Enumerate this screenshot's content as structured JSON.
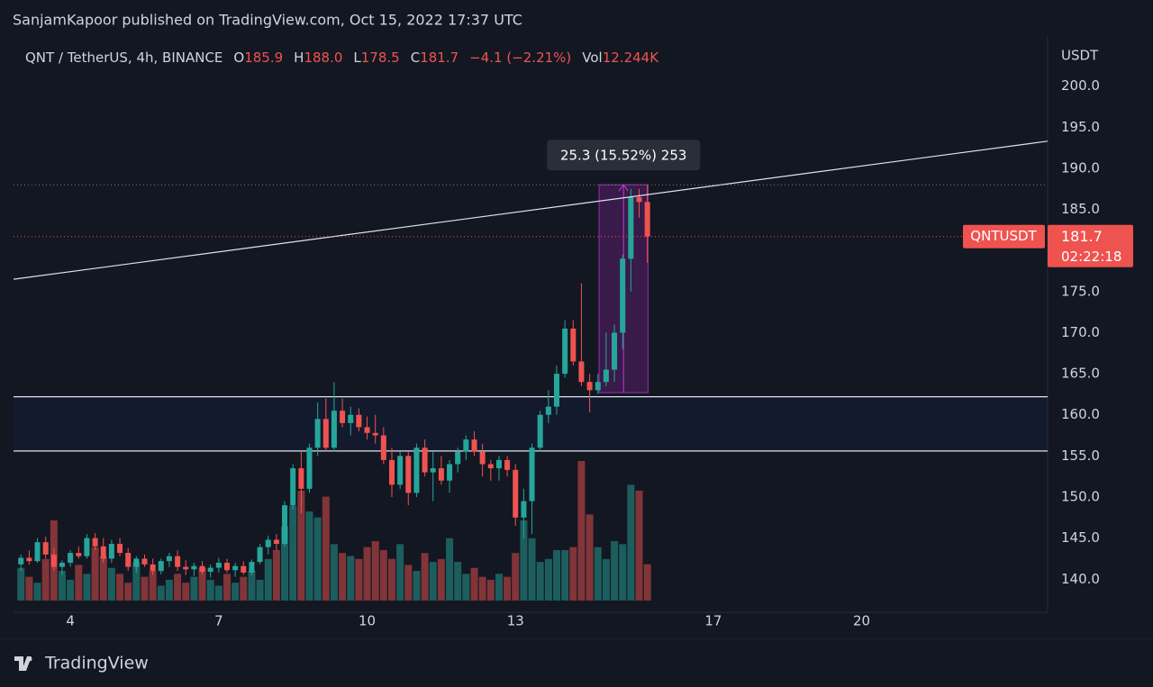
{
  "header": {
    "publisher": "SanjamKapoor published on TradingView.com, Oct 15, 2022 17:37 UTC"
  },
  "chart_data": {
    "type": "candlestick",
    "symbol": "QNT / TetherUS, 4h, BINANCE",
    "legend_values": [
      {
        "name": "O",
        "text": "185.9"
      },
      {
        "name": "H",
        "text": "188.0"
      },
      {
        "name": "L",
        "text": "178.5"
      },
      {
        "name": "C",
        "text": "181.7"
      },
      {
        "text": "−4.1 (−2.21%)"
      },
      {
        "name": "Vol",
        "text": "12.244K"
      }
    ],
    "axis_unit": "USDT",
    "up_color": "#26a69a",
    "down_color": "#ef5350",
    "x": [
      3,
      3.167,
      3.333,
      3.5,
      3.667,
      3.833,
      4,
      4.167,
      4.333,
      4.5,
      4.667,
      4.833,
      5,
      5.167,
      5.333,
      5.5,
      5.667,
      5.833,
      6,
      6.167,
      6.333,
      6.5,
      6.667,
      6.833,
      7,
      7.167,
      7.333,
      7.5,
      7.667,
      7.833,
      8,
      8.167,
      8.333,
      8.5,
      8.667,
      8.833,
      9,
      9.167,
      9.333,
      9.5,
      9.667,
      9.833,
      10,
      10.167,
      10.333,
      10.5,
      10.667,
      10.833,
      11,
      11.167,
      11.333,
      11.5,
      11.667,
      11.833,
      12,
      12.167,
      12.333,
      12.5,
      12.667,
      12.833,
      13,
      13.167,
      13.333,
      13.5,
      13.667,
      13.833,
      14,
      14.167,
      14.333,
      14.5,
      14.667,
      14.833,
      15,
      15.167,
      15.333,
      15.5,
      15.667
    ],
    "open": [
      141.8,
      142.6,
      142.2,
      144.5,
      143,
      141.5,
      142,
      143.2,
      142.8,
      145,
      144,
      142.5,
      144.3,
      143.2,
      141.5,
      142.5,
      141.8,
      141,
      142.2,
      142.8,
      141.5,
      141.2,
      141.6,
      140.9,
      141.4,
      142,
      141.1,
      141.6,
      140.8,
      142.1,
      143.9,
      144.8,
      144.3,
      149,
      153.5,
      151,
      156,
      159.5,
      156,
      160.5,
      159,
      160,
      158.5,
      157.8,
      157.5,
      154.5,
      151.5,
      155,
      150.5,
      156,
      153,
      153.5,
      152,
      154,
      155.5,
      157,
      155.5,
      154,
      153.5,
      154.5,
      153.3,
      147.5,
      149.5,
      156,
      160,
      161,
      165,
      170.5,
      166.5,
      164,
      163,
      164,
      165.5,
      170,
      179,
      186.5,
      185.9
    ],
    "high": [
      143,
      143.5,
      145,
      145.2,
      143.8,
      142.3,
      143.5,
      144,
      145.5,
      145.6,
      145,
      144.8,
      145,
      143.8,
      142.8,
      143,
      142.5,
      142.5,
      143.2,
      143.5,
      142.3,
      142,
      142.2,
      141.8,
      142.6,
      142.5,
      142,
      142.2,
      142.4,
      144.3,
      145.3,
      145.5,
      149.5,
      154,
      155.5,
      156.5,
      161.5,
      162,
      164,
      162,
      161,
      160.8,
      159.8,
      160,
      158.5,
      156,
      155.5,
      155.5,
      156.5,
      157,
      155.5,
      155,
      154.5,
      156,
      157.5,
      158,
      156.5,
      154.5,
      155,
      155,
      154,
      151,
      156.5,
      160.5,
      163,
      166,
      171.5,
      171.5,
      176,
      165,
      165,
      170,
      171,
      179.5,
      187.5,
      187.5,
      188
    ],
    "low": [
      141,
      141.8,
      142,
      142.5,
      141,
      140.5,
      141.5,
      142.5,
      142.5,
      143.5,
      142,
      142,
      142.8,
      141,
      140.8,
      141.5,
      140.5,
      140.6,
      141.5,
      141,
      140.5,
      140.4,
      140.6,
      140.2,
      140.8,
      140.8,
      140.3,
      140.5,
      140.5,
      141.8,
      143,
      143.5,
      144,
      148.5,
      148,
      150.5,
      155,
      155.5,
      155.5,
      158.5,
      157.5,
      158,
      157,
      156.5,
      154,
      150,
      151,
      149,
      150,
      152.5,
      149.5,
      151.5,
      150.5,
      153,
      154.5,
      155,
      152.5,
      152,
      152,
      152.5,
      146.5,
      145,
      145.5,
      155.5,
      159,
      160,
      164.5,
      166,
      163.5,
      160.3,
      162.5,
      163.5,
      164,
      168,
      175,
      184,
      178.5
    ],
    "close": [
      142.6,
      142.2,
      144.5,
      143,
      141.5,
      142,
      143.2,
      142.8,
      145,
      144,
      142.5,
      144.3,
      143.2,
      141.5,
      142.5,
      141.8,
      141,
      142.2,
      142.8,
      141.5,
      141.2,
      141.6,
      140.9,
      141.4,
      142,
      141.1,
      141.6,
      140.8,
      142.1,
      143.9,
      144.8,
      144.3,
      149,
      153.5,
      151,
      156,
      159.5,
      156,
      160.5,
      159,
      160,
      158.5,
      157.8,
      157.5,
      154.5,
      151.5,
      155,
      150.5,
      156,
      153,
      153.5,
      152,
      154,
      155.5,
      157,
      155.5,
      154,
      153.5,
      154.5,
      153.3,
      147.5,
      149.5,
      156,
      160,
      161,
      165,
      170.5,
      166.5,
      164,
      163,
      164,
      165.5,
      170,
      179,
      186.5,
      185.9,
      181.7
    ],
    "volume": [
      11,
      8,
      6,
      14,
      27,
      10,
      7,
      12,
      9,
      18,
      15,
      11,
      9,
      6,
      13,
      8,
      10,
      5,
      7,
      9,
      6,
      8,
      11,
      7,
      5,
      9,
      6,
      8,
      10,
      7,
      14,
      17,
      25,
      32,
      37,
      30,
      28,
      35,
      19,
      16,
      15,
      14,
      18,
      20,
      17,
      14,
      19,
      12,
      10,
      16,
      13,
      14,
      21,
      13,
      9,
      11,
      8,
      7,
      9,
      8,
      16,
      27,
      21,
      13,
      14,
      17,
      17,
      18,
      47,
      29,
      18,
      14,
      20,
      19,
      39,
      37,
      12.244
    ],
    "xlim": [
      2.85,
      23.76
    ],
    "xticks": [
      4,
      7,
      10,
      13,
      17,
      20
    ],
    "ylim": [
      137.4,
      206.1
    ],
    "yticks": [
      {
        "value": 140,
        "label": "140.0"
      },
      {
        "value": 145,
        "label": "145.0"
      },
      {
        "value": 150,
        "label": "150.0"
      },
      {
        "value": 155,
        "label": "155.0"
      },
      {
        "value": 160,
        "label": "160.0"
      },
      {
        "value": 165,
        "label": "165.0"
      },
      {
        "value": 170,
        "label": "170.0"
      },
      {
        "value": 175,
        "label": "175.0"
      },
      {
        "value": 180,
        "label": "180.0"
      },
      {
        "value": 185,
        "label": "185.0"
      },
      {
        "value": 190,
        "label": "190.0"
      },
      {
        "value": 195,
        "label": "195.0"
      },
      {
        "value": 200,
        "label": "200.0"
      }
    ],
    "hlines": [
      162.2,
      155.6
    ],
    "trendline": {
      "x": [
        2.85,
        23.76
      ],
      "y": [
        176.5,
        193.3
      ]
    },
    "measure": {
      "x": [
        14.69,
        15.68
      ],
      "y": [
        162.7,
        188.0
      ],
      "label": "25.3 (15.52%) 253"
    },
    "last_price": {
      "symbol": "QNTUSDT",
      "value": 181.7,
      "countdown": "02:22:18"
    }
  },
  "footer": {
    "brand": "TradingView"
  }
}
